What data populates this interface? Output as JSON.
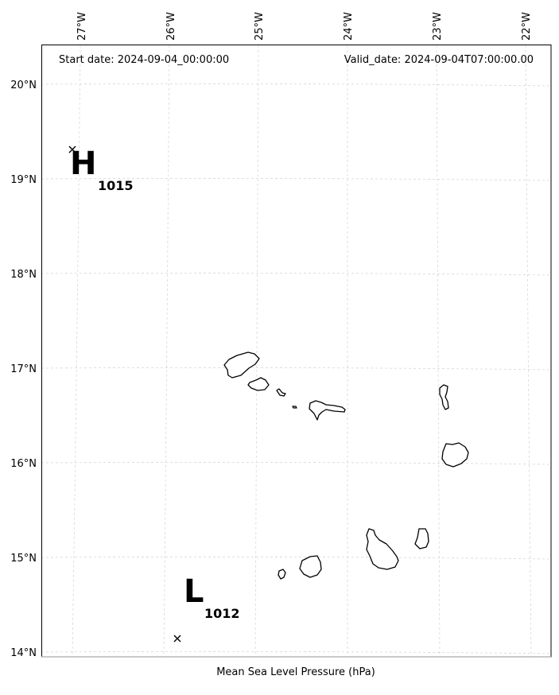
{
  "header": {
    "start_date": "Start date: 2024-09-04_00:00:00",
    "valid_date": "Valid_date: 2024-09-04T07:00:00.00"
  },
  "axes": {
    "lon_labels": [
      "27°W",
      "26°W",
      "25°W",
      "24°W",
      "23°W",
      "22°W"
    ],
    "lat_labels": [
      "20°N",
      "19°N",
      "18°N",
      "17°N",
      "16°N",
      "15°N",
      "14°N"
    ]
  },
  "pressure_centers": [
    {
      "type": "high",
      "symbol": "H",
      "value": "1015",
      "lon": -27.0,
      "lat": 19.3
    },
    {
      "type": "low",
      "symbol": "L",
      "value": "1012",
      "lon": -25.9,
      "lat": 14.15
    }
  ],
  "xlabel": "Mean Sea Level Pressure (hPa)",
  "islands": [
    "Santo Antão",
    "São Vicente",
    "Santa Luzia",
    "Branco",
    "São Nicolau",
    "Sal",
    "Boa Vista",
    "Brava",
    "Fogo",
    "Santiago",
    "Maio"
  ],
  "colors": {
    "grid": "#d6d6d6",
    "coastline": "#000000",
    "frame": "#000000"
  }
}
